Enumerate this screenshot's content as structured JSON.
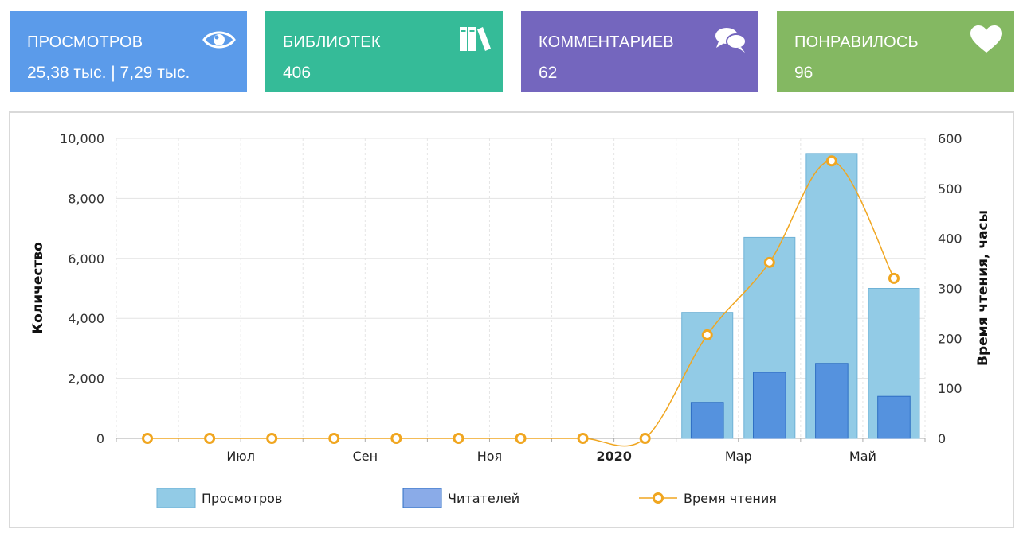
{
  "stats": {
    "views": {
      "label": "ПРОСМОТРОВ",
      "value": "25,38 тыс. | 7,29 тыс.",
      "icon": "eye-icon",
      "color": "#5b9bea"
    },
    "libraries": {
      "label": "БИБЛИОТЕК",
      "value": "406",
      "icon": "books-icon",
      "color": "#35bb98"
    },
    "comments": {
      "label": "КОММЕНТАРИЕВ",
      "value": "62",
      "icon": "chat-icon",
      "color": "#7466be"
    },
    "likes": {
      "label": "ПОНРАВИЛОСЬ",
      "value": "96",
      "icon": "heart-icon",
      "color": "#84b862"
    }
  },
  "chart_data": {
    "type": "bar",
    "categories": [
      "2019-06",
      "2019-07",
      "2019-08",
      "2019-09",
      "2019-10",
      "2019-11",
      "2019-12",
      "2020-01",
      "2020-02",
      "2020-03",
      "2020-04",
      "2020-05",
      "2020-06"
    ],
    "x_tick_labels": [
      {
        "category": "2019-07",
        "label": "Июл",
        "bold": false
      },
      {
        "category": "2019-09",
        "label": "Сен",
        "bold": false
      },
      {
        "category": "2019-11",
        "label": "Ноя",
        "bold": false
      },
      {
        "category": "2020-01",
        "label": "2020",
        "bold": true
      },
      {
        "category": "2020-03",
        "label": "Мар",
        "bold": false
      },
      {
        "category": "2020-05",
        "label": "Май",
        "bold": false
      }
    ],
    "ylabel": "Количество",
    "y2label": "Время чтения, часы",
    "ylim": [
      0,
      10000
    ],
    "y2lim": [
      0,
      600
    ],
    "y_ticks": [
      "0",
      "2,000",
      "4,000",
      "6,000",
      "8,000",
      "10,000"
    ],
    "y2_ticks": [
      "0",
      "100",
      "200",
      "300",
      "400",
      "500",
      "600"
    ],
    "grid": true,
    "legend_position": "bottom",
    "series": [
      {
        "name": "Просмотров",
        "type": "bar",
        "axis": "left",
        "color": "#92cbe6",
        "values": [
          0,
          0,
          0,
          0,
          0,
          0,
          0,
          0,
          0,
          4200,
          6700,
          9500,
          5000
        ]
      },
      {
        "name": "Читателей",
        "type": "bar",
        "axis": "left",
        "color": "#5592de",
        "values": [
          0,
          0,
          0,
          0,
          0,
          0,
          0,
          0,
          0,
          1200,
          2200,
          2500,
          1400
        ]
      },
      {
        "name": "Время чтения",
        "type": "line",
        "axis": "right",
        "color": "#f0a620",
        "values": [
          0,
          0,
          0,
          0,
          0,
          0,
          0,
          0,
          0,
          207,
          352,
          555,
          320
        ]
      }
    ]
  }
}
